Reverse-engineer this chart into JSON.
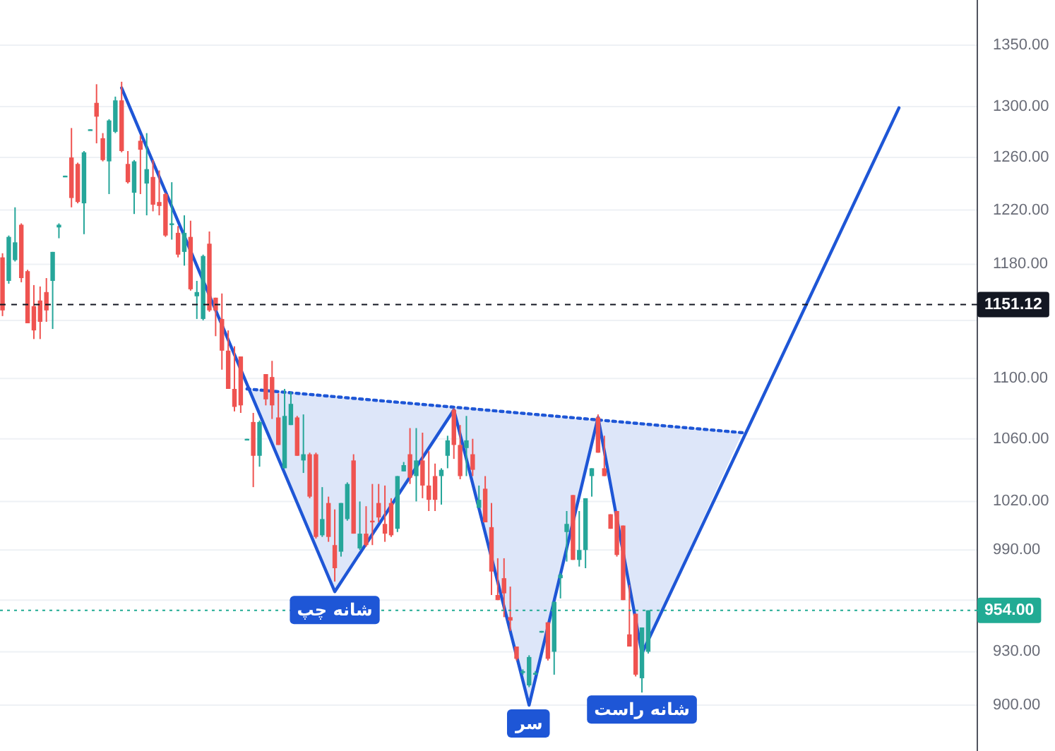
{
  "chart_data": {
    "type": "candlestick",
    "categories": [
      null,
      null,
      null,
      null,
      null,
      null,
      null,
      null,
      null,
      null,
      null,
      null,
      null,
      null,
      null,
      null,
      null,
      null,
      null,
      null,
      null,
      null,
      null,
      null,
      null,
      null,
      null,
      null,
      null,
      null,
      null,
      null,
      null,
      null,
      null,
      null,
      null,
      null,
      null,
      null,
      null,
      null,
      null,
      null,
      null,
      null,
      null,
      null,
      null,
      null,
      null,
      null,
      null,
      null,
      null,
      null,
      null,
      null,
      null,
      null,
      null,
      null,
      null,
      null,
      null,
      null,
      null,
      null,
      null,
      null,
      null,
      null,
      null,
      null,
      null,
      null,
      null,
      null,
      null,
      null,
      null,
      null,
      null,
      null,
      null,
      null,
      null,
      null,
      null,
      null,
      null,
      null,
      null,
      null,
      null,
      null,
      null,
      null,
      null,
      null,
      null,
      null,
      null,
      null,
      null,
      null,
      null,
      null,
      null,
      null,
      null,
      null,
      null,
      null,
      null,
      null,
      null,
      null,
      null,
      null,
      null,
      null,
      null,
      null,
      null,
      null,
      null,
      null,
      null,
      null,
      null,
      null,
      null,
      null,
      null,
      null,
      null,
      null,
      null,
      null,
      null,
      null,
      null,
      null,
      null,
      null,
      null,
      null,
      null,
      null,
      null,
      null,
      null,
      null,
      null,
      null
    ],
    "ohlc": [
      [
        1185,
        1188,
        1143,
        1147
      ],
      [
        1168,
        1201,
        1166,
        1200
      ],
      [
        1183,
        1222,
        1182,
        1196
      ],
      [
        1209,
        1210,
        1167,
        1170
      ],
      [
        1175,
        1176,
        1138,
        1138
      ],
      [
        1150,
        1165,
        1127,
        1133
      ],
      [
        1154,
        1164,
        1127,
        1139
      ],
      [
        1160,
        1170,
        1139,
        1147
      ],
      [
        1168,
        1189,
        1134,
        1189
      ],
      [
        1207,
        1210,
        1199,
        1209
      ],
      [
        1245,
        1246,
        1245,
        1246
      ],
      [
        1260,
        1283,
        1222,
        1229
      ],
      [
        1255,
        1256,
        1225,
        1226
      ],
      [
        1225,
        1265,
        1202,
        1264
      ],
      [
        1281,
        1282,
        1281,
        1282
      ],
      [
        1303,
        1318,
        1271,
        1292
      ],
      [
        1275,
        1279,
        1257,
        1258
      ],
      [
        1257,
        1290,
        1232,
        1289
      ],
      [
        1280,
        1308,
        1279,
        1305
      ],
      [
        1305,
        1320,
        1264,
        1265
      ],
      [
        1255,
        1265,
        1240,
        1241
      ],
      [
        1233,
        1258,
        1217,
        1257
      ],
      [
        1273,
        1277,
        1232,
        1266
      ],
      [
        1240,
        1279,
        1216,
        1251
      ],
      [
        1245,
        1258,
        1219,
        1224
      ],
      [
        1226,
        1250,
        1216,
        1223
      ],
      [
        1232,
        1233,
        1200,
        1201
      ],
      [
        1209,
        1241,
        1198,
        1210
      ],
      [
        1203,
        1208,
        1185,
        1187
      ],
      [
        1189,
        1216,
        1179,
        1203
      ],
      [
        1200,
        1212,
        1161,
        1162
      ],
      [
        1157,
        1168,
        1141,
        1160
      ],
      [
        1141,
        1187,
        1140,
        1186
      ],
      [
        1195,
        1204,
        1146,
        1147
      ],
      [
        1156,
        1156,
        1129,
        1147
      ],
      [
        1141,
        1159,
        1106,
        1119
      ],
      [
        1119,
        1133,
        1093,
        1093
      ],
      [
        1093,
        1122,
        1078,
        1081
      ],
      [
        1115,
        1115,
        1077,
        1082
      ],
      [
        1059,
        1060,
        1059,
        1060
      ],
      [
        1071,
        1077,
        1029,
        1049
      ],
      [
        1049,
        1072,
        1042,
        1071
      ],
      [
        1103,
        1103,
        1082,
        1086
      ],
      [
        1101,
        1112,
        1073,
        1082
      ],
      [
        1074,
        1090,
        1056,
        1056
      ],
      [
        1041,
        1093,
        1041,
        1075
      ],
      [
        1069,
        1091,
        1069,
        1083
      ],
      [
        1074,
        1075,
        1049,
        1049
      ],
      [
        1046,
        1076,
        1038,
        1050
      ],
      [
        1050,
        1051,
        1022,
        1023
      ],
      [
        1050,
        1051,
        997,
        998
      ],
      [
        999,
        1029,
        998,
        1009
      ],
      [
        1019,
        1023,
        995,
        998
      ],
      [
        993,
        1015,
        971,
        979
      ],
      [
        989,
        1019,
        986,
        1019
      ],
      [
        1009,
        1032,
        1008,
        1031
      ],
      [
        1046,
        1050,
        1000,
        1000
      ],
      [
        991,
        1020,
        990,
        1000
      ],
      [
        1000,
        1017,
        992,
        993
      ],
      [
        1008,
        1031,
        993,
        1007
      ],
      [
        1019,
        1031,
        1007,
        1010
      ],
      [
        1006,
        1030,
        995,
        1000
      ],
      [
        1019,
        1022,
        998,
        999
      ],
      [
        1003,
        1036,
        1001,
        1036
      ],
      [
        1039,
        1045,
        1039,
        1043
      ],
      [
        1050,
        1067,
        1031,
        1035
      ],
      [
        1036,
        1067,
        1020,
        1046
      ],
      [
        1046,
        1064,
        1022,
        1030
      ],
      [
        1030,
        1052,
        1014,
        1021
      ],
      [
        1036,
        1044,
        1014,
        1021
      ],
      [
        1036,
        1041,
        1018,
        1040
      ],
      [
        1049,
        1062,
        1041,
        1059
      ],
      [
        1079,
        1080,
        1047,
        1056
      ],
      [
        1056,
        1069,
        1034,
        1036
      ],
      [
        1054,
        1075,
        1036,
        1059
      ],
      [
        1050,
        1060,
        1036,
        1040
      ],
      [
        1016,
        1030,
        1016,
        1021
      ],
      [
        1028,
        1036,
        1007,
        1007
      ],
      [
        1004,
        1019,
        963,
        977
      ],
      [
        963,
        985,
        960,
        960
      ],
      [
        973,
        985,
        950,
        964
      ],
      [
        950,
        968,
        942,
        948
      ],
      [
        933,
        933,
        925,
        926
      ],
      [
        918,
        920,
        917,
        919
      ],
      [
        911,
        928,
        910,
        927
      ],
      [
        917,
        919,
        917,
        918
      ],
      [
        941,
        942,
        941,
        942
      ],
      [
        947,
        947,
        925,
        926
      ],
      [
        930,
        959,
        917,
        959
      ],
      [
        973,
        976,
        961,
        975
      ],
      [
        1001,
        1014,
        983,
        1006
      ],
      [
        1024,
        1024,
        984,
        984
      ],
      [
        984,
        1014,
        980,
        990
      ],
      [
        990,
        1022,
        979,
        1022
      ],
      [
        1036,
        1041,
        1023,
        1041
      ],
      [
        1074,
        1076,
        1051,
        1051
      ],
      [
        1041,
        1062,
        1036,
        1036
      ],
      [
        1012,
        1012,
        1003,
        1003
      ],
      [
        1014,
        1014,
        986,
        987
      ],
      [
        1005,
        1005,
        960,
        960
      ],
      [
        940,
        969,
        933,
        933
      ],
      [
        952,
        952,
        916,
        917
      ],
      [
        915,
        944,
        907,
        944
      ],
      [
        930,
        954,
        929,
        954
      ],
      null,
      null,
      null,
      null,
      null,
      null,
      null,
      null,
      null,
      null,
      null,
      null,
      null,
      null,
      null,
      null,
      null,
      null,
      null,
      null,
      null,
      null,
      null,
      null,
      null,
      null,
      null,
      null,
      null,
      null,
      null,
      null,
      null,
      null,
      null,
      null,
      null,
      null,
      null,
      null,
      null,
      null,
      null,
      null,
      null,
      null,
      null,
      null,
      null,
      null,
      null,
      null
    ],
    "colors": [
      "#ef5350",
      "#26a69a",
      "#26a69a",
      "#ef5350",
      "#ef5350",
      "#ef5350",
      "#ef5350",
      "#ef5350",
      "#26a69a",
      "#26a69a",
      "#26a69a",
      "#ef5350",
      "#ef5350",
      "#26a69a",
      "#26a69a",
      "#ef5350",
      "#ef5350",
      "#26a69a",
      "#26a69a",
      "#ef5350",
      "#ef5350",
      "#26a69a",
      "#ef5350",
      "#26a69a",
      "#ef5350",
      "#ef5350",
      "#ef5350",
      "#26a69a",
      "#ef5350",
      "#26a69a",
      "#ef5350",
      "#26a69a",
      "#26a69a",
      "#ef5350",
      "#ef5350",
      "#ef5350",
      "#ef5350",
      "#ef5350",
      "#ef5350",
      "#26a69a",
      "#ef5350",
      "#26a69a",
      "#ef5350",
      "#ef5350",
      "#ef5350",
      "#26a69a",
      "#26a69a",
      "#ef5350",
      "#26a69a",
      "#ef5350",
      "#ef5350",
      "#26a69a",
      "#ef5350",
      "#ef5350",
      "#26a69a",
      "#26a69a",
      "#ef5350",
      "#26a69a",
      "#ef5350",
      "#ef5350",
      "#ef5350",
      "#ef5350",
      "#ef5350",
      "#26a69a",
      "#26a69a",
      "#ef5350",
      "#26a69a",
      "#ef5350",
      "#ef5350",
      "#ef5350",
      "#26a69a",
      "#26a69a",
      "#ef5350",
      "#ef5350",
      "#26a69a",
      "#ef5350",
      "#26a69a",
      "#ef5350",
      "#ef5350",
      "#ef5350",
      "#ef5350",
      "#ef5350",
      "#ef5350",
      "#26a69a",
      "#26a69a",
      "#26a69a",
      "#26a69a",
      "#ef5350",
      "#26a69a",
      "#26a69a",
      "#26a69a",
      "#ef5350",
      "#26a69a",
      "#26a69a",
      "#26a69a",
      "#ef5350",
      "#ef5350",
      "#ef5350",
      "#ef5350",
      "#ef5350",
      "#ef5350",
      "#ef5350",
      "#26a69a",
      "#26a69a",
      null,
      null,
      null,
      null,
      null,
      null,
      null,
      null,
      null,
      null,
      null,
      null,
      null,
      null,
      null,
      null,
      null,
      null,
      null,
      null,
      null,
      null,
      null,
      null,
      null,
      null,
      null,
      null,
      null,
      null,
      null,
      null,
      null,
      null,
      null,
      null,
      null,
      null,
      null,
      null,
      null,
      null,
      null,
      null,
      null,
      null,
      null,
      null,
      null,
      null,
      null,
      null
    ],
    "series": [
      {
        "type": "line",
        "color": "#1e56d6",
        "values": [
          null,
          null,
          null,
          null,
          null,
          null,
          null,
          null,
          null,
          null,
          null,
          null,
          null,
          null,
          null,
          null,
          null,
          null,
          null,
          1315,
          null,
          null,
          null,
          null,
          null,
          null,
          null,
          null,
          null,
          null,
          null,
          null,
          null,
          null,
          null,
          null,
          null,
          null,
          null,
          null,
          null,
          null,
          null,
          null,
          null,
          null,
          null,
          null,
          null,
          null,
          null,
          null,
          null,
          965,
          null,
          null,
          null,
          null,
          null,
          null,
          null,
          null,
          null,
          null,
          null,
          null,
          null,
          null,
          null,
          null,
          null,
          null,
          1079,
          null,
          null,
          null,
          null,
          null,
          null,
          null,
          null,
          null,
          null,
          null,
          900,
          null,
          null,
          null,
          null,
          null,
          null,
          null,
          null,
          null,
          null,
          1074,
          null,
          null,
          null,
          null,
          null,
          null,
          929,
          null,
          null,
          null,
          null,
          null,
          null,
          null,
          null,
          null,
          null,
          null,
          null,
          null,
          null,
          null,
          null,
          null,
          null,
          null,
          null,
          null,
          null,
          null,
          null,
          null,
          null,
          null,
          null,
          null,
          null,
          null,
          null,
          null,
          null,
          null,
          null,
          null,
          null,
          null,
          null,
          1299,
          null,
          null,
          null,
          null,
          null,
          null,
          null,
          null,
          null,
          null,
          null,
          null
        ]
      },
      {
        "type": "line",
        "color": "#1e56d6",
        "line_style": "dotted",
        "values": [
          null,
          null,
          null,
          null,
          null,
          null,
          null,
          null,
          null,
          null,
          null,
          null,
          null,
          null,
          null,
          null,
          null,
          null,
          null,
          null,
          null,
          null,
          null,
          null,
          null,
          null,
          null,
          null,
          null,
          null,
          null,
          null,
          null,
          null,
          null,
          null,
          null,
          null,
          null,
          1093,
          null,
          null,
          null,
          null,
          null,
          null,
          null,
          null,
          null,
          null,
          null,
          null,
          null,
          null,
          null,
          null,
          null,
          null,
          null,
          null,
          null,
          null,
          null,
          null,
          null,
          null,
          null,
          null,
          null,
          null,
          null,
          null,
          null,
          null,
          null,
          null,
          null,
          null,
          null,
          null,
          null,
          null,
          null,
          null,
          null,
          null,
          null,
          null,
          null,
          null,
          null,
          null,
          null,
          null,
          null,
          null,
          null,
          null,
          null,
          null,
          null,
          null,
          null,
          null,
          null,
          null,
          null,
          null,
          null,
          null,
          null,
          null,
          null,
          null,
          null,
          null,
          null,
          null,
          1064,
          null,
          null,
          null,
          null,
          null,
          null,
          null,
          null,
          null,
          null,
          null,
          null,
          null,
          null,
          null,
          null,
          null,
          null,
          null,
          null,
          null,
          null,
          null,
          null,
          null,
          null,
          null,
          null,
          null,
          null,
          null,
          null,
          null,
          null,
          null,
          null,
          null
        ]
      }
    ],
    "log": "y",
    "ylim": [
      875,
      1388
    ],
    "yticks": [
      {
        "value": 900,
        "label": "900.00"
      },
      {
        "value": 930,
        "label": "930.00"
      },
      {
        "value": 960,
        "label": null
      },
      {
        "value": 990,
        "label": "990.00"
      },
      {
        "value": 1020,
        "label": "1020.00"
      },
      {
        "value": 1060,
        "label": "1060.00"
      },
      {
        "value": 1100,
        "label": "1100.00"
      },
      {
        "value": 1140,
        "label": null
      },
      {
        "value": 1180,
        "label": "1180.00"
      },
      {
        "value": 1220,
        "label": "1220.00"
      },
      {
        "value": 1260,
        "label": "1260.00"
      },
      {
        "value": 1300,
        "label": "1300.00"
      },
      {
        "value": 1350,
        "label": "1350.00"
      }
    ],
    "grid": "y",
    "ref_lines": [
      {
        "axis": "y",
        "value": 1151.12,
        "label": "1151.12",
        "color": "#131722",
        "line_style": "dashed"
      },
      {
        "axis": "y",
        "value": 954,
        "label": "954.00",
        "color": "#22ab94",
        "line_style": "dotted"
      }
    ],
    "annotations": [
      "شانه چپ",
      "سر",
      "شانه راست"
    ]
  }
}
